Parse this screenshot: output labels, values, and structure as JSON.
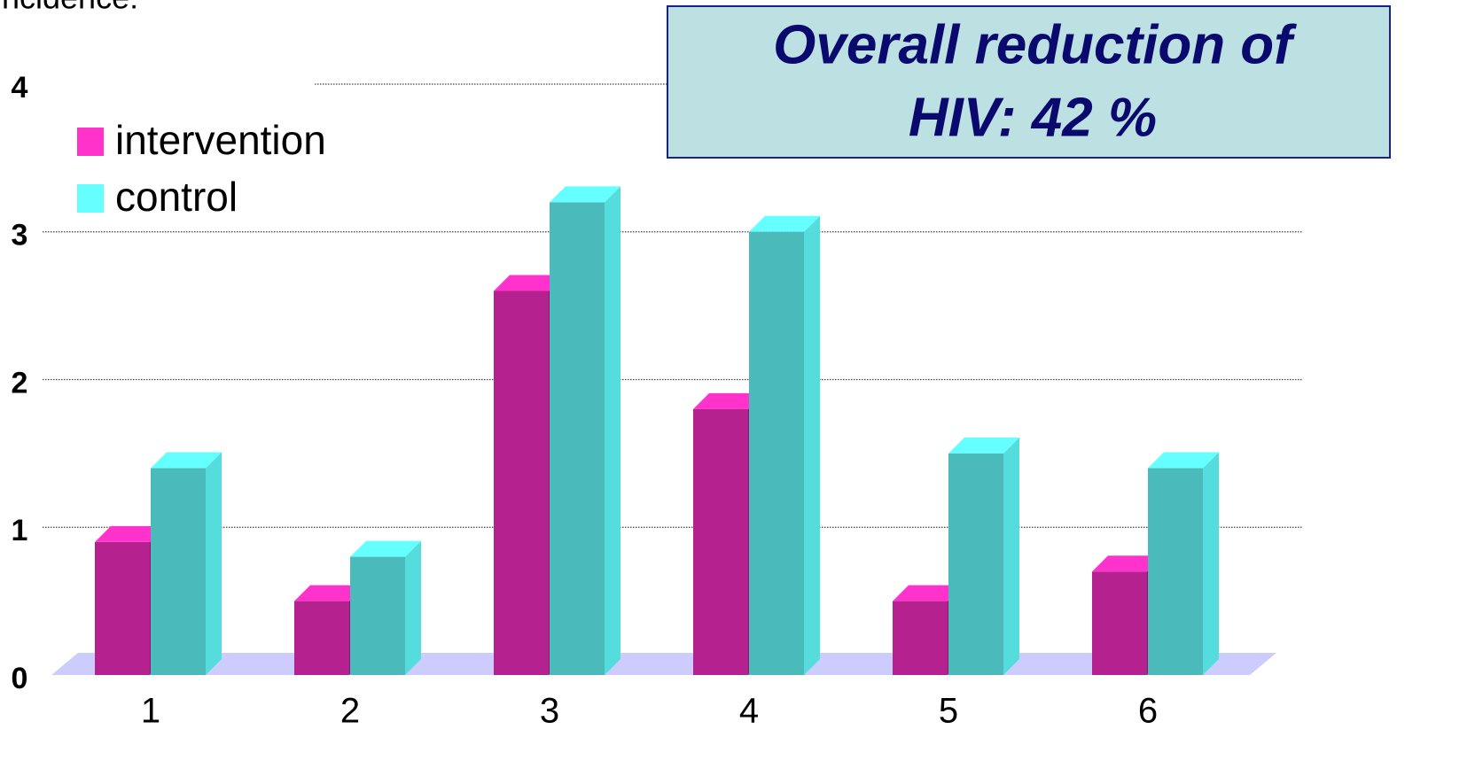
{
  "chart_data": {
    "type": "bar3d",
    "y_label": "incidence:",
    "annotation": [
      "Overall reduction of",
      "HIV: 42 %"
    ],
    "categories": [
      "1",
      "2",
      "3",
      "4",
      "5",
      "6"
    ],
    "series": [
      {
        "name": "intervention",
        "color": "#b5218f",
        "values": [
          0.9,
          0.5,
          2.6,
          1.8,
          0.5,
          0.7
        ]
      },
      {
        "name": "control",
        "color": "#4bbaba",
        "values": [
          1.4,
          0.8,
          3.2,
          3.0,
          1.5,
          1.4
        ]
      }
    ],
    "ylim": [
      0,
      4
    ],
    "yticks": [
      0,
      1,
      2,
      3,
      4
    ],
    "grid": true
  }
}
